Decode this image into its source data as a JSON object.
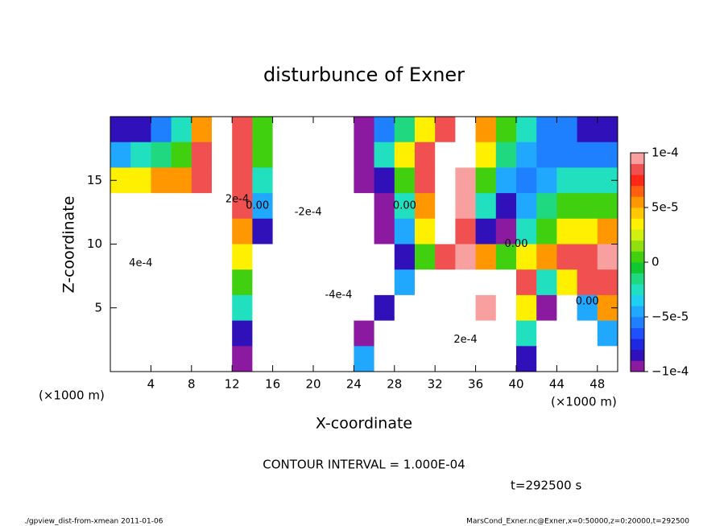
{
  "chart_data": {
    "type": "contour",
    "title": "disturbunce of Exner",
    "x_label": "X-coordinate",
    "y_label": "Z-coordinate",
    "x_unit_label": "(×1000 m)",
    "y_unit_label": "(×1000 m)",
    "contour_interval": "CONTOUR INTERVAL = 1.000E-04",
    "time_label": "t=292500 s",
    "footer_left": "./gpview_dist-from-xmean  2011-01-06",
    "footer_right": "MarsCond_Exner.nc@Exner,x=0:50000,z=0:20000,t=292500",
    "xlim": [
      0,
      50
    ],
    "ylim": [
      0,
      20
    ],
    "xticks": [
      4,
      8,
      12,
      16,
      20,
      24,
      28,
      32,
      36,
      40,
      44,
      48
    ],
    "yticks": [
      5,
      10,
      15
    ],
    "clim": [
      -0.0001,
      0.0001
    ],
    "cticks": [
      {
        "value": -0.0001,
        "label": "−1e-4"
      },
      {
        "value": -5e-05,
        "label": "−5e-5"
      },
      {
        "value": 0,
        "label": "0"
      },
      {
        "value": 5e-05,
        "label": "5e-5"
      },
      {
        "value": 0.0001,
        "label": "1e-4"
      }
    ],
    "colors": [
      "#8b1aa0",
      "#3010b8",
      "#1e28e0",
      "#1e50ff",
      "#1e80ff",
      "#20a8ff",
      "#20d0f0",
      "#20e0c0",
      "#20d880",
      "#10c830",
      "#40d010",
      "#90e010",
      "#d0f010",
      "#fff000",
      "#ffc800",
      "#ff9800",
      "#ff6010",
      "#ff2818",
      "#f05050",
      "#f8a0a0"
    ],
    "x": [
      1,
      3,
      5,
      7,
      9,
      11,
      13,
      15,
      17,
      19,
      21,
      23,
      25,
      27,
      29,
      31,
      33,
      35,
      37,
      39,
      41,
      43,
      45,
      47,
      49
    ],
    "y": [
      19,
      17,
      15,
      13,
      11,
      9,
      7,
      5,
      3,
      1
    ],
    "z": [
      [
        -8e-05,
        -8e-05,
        -6e-05,
        -3e-05,
        5e-05,
        0.0002,
        8e-05,
        0,
        0.0002,
        0.0002,
        0.0002,
        0.0002,
        -0.0001,
        -6e-05,
        -2e-05,
        3e-05,
        8e-05,
        0.0002,
        5e-05,
        0,
        -3e-05,
        -6e-05,
        -6e-05,
        -8e-05,
        -8e-05
      ],
      [
        -5e-05,
        -3e-05,
        -2e-05,
        0,
        8e-05,
        0.0002,
        8e-05,
        0,
        0.0002,
        0.0002,
        0.0002,
        0.0002,
        -0.0001,
        -3e-05,
        3e-05,
        8e-05,
        0.0002,
        0.0002,
        3e-05,
        -2e-05,
        -5e-05,
        -6e-05,
        -6e-05,
        -6e-05,
        -6e-05
      ],
      [
        3e-05,
        3e-05,
        5e-05,
        5e-05,
        8e-05,
        0.0002,
        8e-05,
        -3e-05,
        -0.0002,
        -0.0002,
        -0.0002,
        -0.0002,
        -0.0001,
        -8e-05,
        0,
        8e-05,
        0.0002,
        0.0001,
        0,
        -5e-05,
        -6e-05,
        -5e-05,
        -3e-05,
        -3e-05,
        -3e-05
      ],
      [
        0.0002,
        0.0002,
        0.0002,
        0.0002,
        0.0002,
        0.0002,
        8e-05,
        -5e-05,
        -0.0002,
        -0.0002,
        -0.0002,
        -0.0002,
        -0.0002,
        -0.0001,
        -3e-05,
        5e-05,
        0.0002,
        0.0001,
        -3e-05,
        -8e-05,
        -5e-05,
        -2e-05,
        0,
        0,
        0
      ],
      [
        0.0002,
        0.0002,
        0.0002,
        0.0002,
        0.0002,
        0.0002,
        5e-05,
        -8e-05,
        -0.0002,
        -0.0002,
        -0.0002,
        -0.0002,
        -0.0002,
        -0.0001,
        -5e-05,
        3e-05,
        0.0002,
        8e-05,
        -8e-05,
        -0.0001,
        -3e-05,
        0,
        3e-05,
        3e-05,
        5e-05
      ],
      [
        0.0002,
        0.0002,
        0.0002,
        0.0002,
        0.0002,
        0.0002,
        3e-05,
        -0.0002,
        -0.0002,
        -0.0002,
        -0.0002,
        -0.0002,
        -0.0002,
        -0.0002,
        -8e-05,
        0,
        8e-05,
        0.0001,
        5e-05,
        0,
        3e-05,
        5e-05,
        8e-05,
        8e-05,
        0.0001
      ],
      [
        0.0002,
        0.0002,
        0.0002,
        0.0002,
        0.0002,
        0.0002,
        0,
        -0.0002,
        -0.0002,
        -0.0002,
        -0.0002,
        -0.0002,
        -0.0002,
        -0.0002,
        -5e-05,
        0.0002,
        0.0002,
        0.0002,
        0.0002,
        0.0002,
        8e-05,
        -3e-05,
        3e-05,
        8e-05,
        8e-05
      ],
      [
        0.0002,
        0.0002,
        0.0002,
        0.0002,
        0.0002,
        0.0002,
        -3e-05,
        -0.0002,
        -0.0002,
        -0.0002,
        -0.0002,
        -0.0002,
        -0.0002,
        -8e-05,
        0.0002,
        0.0002,
        0.0002,
        0.0002,
        9e-05,
        0.0002,
        3e-05,
        -0.0001,
        -0.0002,
        -5e-05,
        5e-05
      ],
      [
        0.0002,
        0.0002,
        0.0002,
        0.0002,
        0.0002,
        0.0002,
        -8e-05,
        -0.0002,
        -0.0002,
        -0.0002,
        -0.0002,
        -0.0002,
        -0.0001,
        0.0002,
        0.0002,
        0.0002,
        0.0002,
        0.0002,
        0.0002,
        0.0002,
        -3e-05,
        -0.0002,
        -0.0002,
        -0.0002,
        -5e-05
      ],
      [
        0.0002,
        0.0002,
        0.0002,
        0.0002,
        0.0002,
        0.0002,
        -0.0001,
        -0.0002,
        -0.0002,
        -0.0002,
        -0.0002,
        -0.0002,
        -5e-05,
        0.0002,
        0.0002,
        0.0002,
        0.0002,
        0.0002,
        0.0002,
        0.0002,
        -8e-05,
        -0.0002,
        -0.0002,
        -0.0002,
        -0.0002
      ]
    ],
    "annotations": [
      {
        "text": "4e-4",
        "x": 3,
        "y": 8.5
      },
      {
        "text": "2e-4",
        "x": 12.5,
        "y": 13.5
      },
      {
        "text": "0.00",
        "x": 14.5,
        "y": 13
      },
      {
        "text": "-2e-4",
        "x": 19.5,
        "y": 12.5
      },
      {
        "text": "-4e-4",
        "x": 22.5,
        "y": 6
      },
      {
        "text": "0.00",
        "x": 29,
        "y": 13
      },
      {
        "text": "2e-4",
        "x": 35,
        "y": 2.5
      },
      {
        "text": "0.00",
        "x": 40,
        "y": 10
      },
      {
        "text": "0.00",
        "x": 47,
        "y": 5.5
      }
    ]
  }
}
